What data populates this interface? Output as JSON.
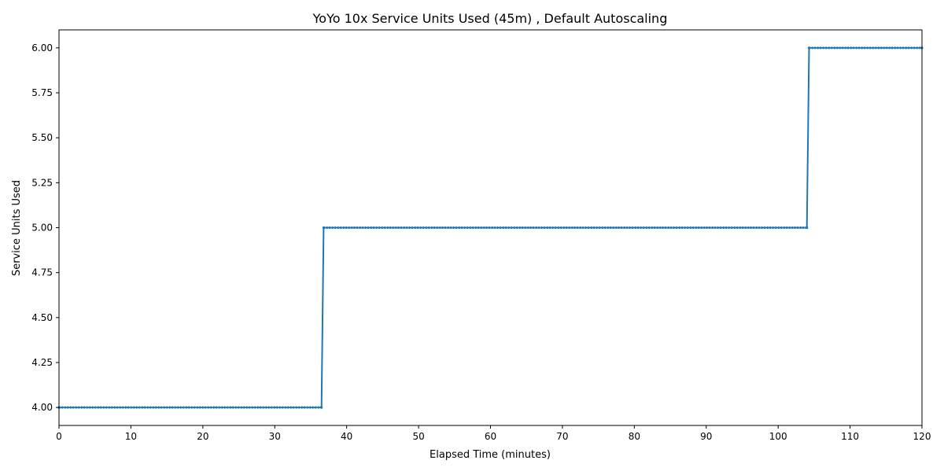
{
  "chart_data": {
    "type": "line",
    "title": "YoYo 10x Service Units Used (45m) , Default Autoscaling",
    "xlabel": "Elapsed Time (minutes)",
    "ylabel": "Service Units Used",
    "xlim": [
      0,
      120
    ],
    "ylim": [
      3.9,
      6.1
    ],
    "x_ticks": [
      0,
      10,
      20,
      30,
      40,
      50,
      60,
      70,
      80,
      90,
      100,
      110,
      120
    ],
    "y_ticks": [
      4.0,
      4.25,
      4.5,
      4.75,
      5.0,
      5.25,
      5.5,
      5.75,
      6.0
    ],
    "x_tick_labels": [
      "0",
      "10",
      "20",
      "30",
      "40",
      "50",
      "60",
      "70",
      "80",
      "90",
      "100",
      "110",
      "120"
    ],
    "y_tick_labels": [
      "4.00",
      "4.25",
      "4.50",
      "4.75",
      "5.00",
      "5.25",
      "5.50",
      "5.75",
      "6.00"
    ],
    "grid": false,
    "series": [
      {
        "color": "#1f77b4",
        "marker": "small-dot",
        "x": [
          0,
          36.5,
          36.8,
          104.0,
          104.3,
          120
        ],
        "y": [
          4,
          4,
          5,
          5,
          6,
          6
        ]
      }
    ]
  }
}
